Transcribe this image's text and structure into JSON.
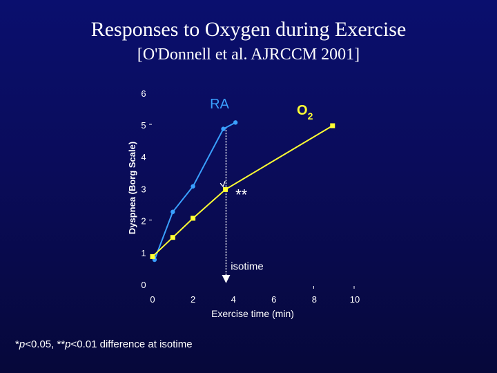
{
  "title": "Responses to Oxygen during Exercise",
  "subtitle": "[O'Donnell et al. AJRCCM 2001]",
  "footnote": "*p<0.05, **p<0.01 difference at isotime",
  "chart_data": {
    "type": "line",
    "xlabel": "Exercise time (min)",
    "ylabel": "Dyspnea (Borg Scale)",
    "xlim": [
      0,
      10
    ],
    "ylim": [
      0,
      6
    ],
    "x_ticks": [
      "0",
      "2",
      "4",
      "6",
      "8",
      "10"
    ],
    "y_ticks": [
      "0",
      "1",
      "2",
      "3",
      "4",
      "5",
      "6"
    ],
    "series": [
      {
        "name": "RA",
        "color": "#3aa0ff",
        "marker": "circle",
        "x": [
          0.1,
          1.0,
          2.0,
          3.5,
          4.1
        ],
        "y": [
          0.8,
          2.3,
          3.1,
          4.9,
          5.1
        ]
      },
      {
        "name": "O2",
        "color": "#ffff33",
        "marker": "square",
        "x": [
          0.0,
          1.0,
          2.0,
          3.6,
          8.9
        ],
        "y": [
          0.9,
          1.5,
          2.1,
          3.0,
          5.0
        ]
      }
    ],
    "annotations": [
      {
        "text": "**",
        "x": 4.1,
        "y": 2.8
      },
      {
        "text": "isotime",
        "x": 4.0,
        "y": 0.75
      }
    ],
    "isotime_x": 3.6,
    "series_labels": {
      "ra": "RA",
      "o2_main": "O",
      "o2_sub": "2"
    },
    "axis_color": "#ffffff",
    "text_color": "#ffffff"
  }
}
